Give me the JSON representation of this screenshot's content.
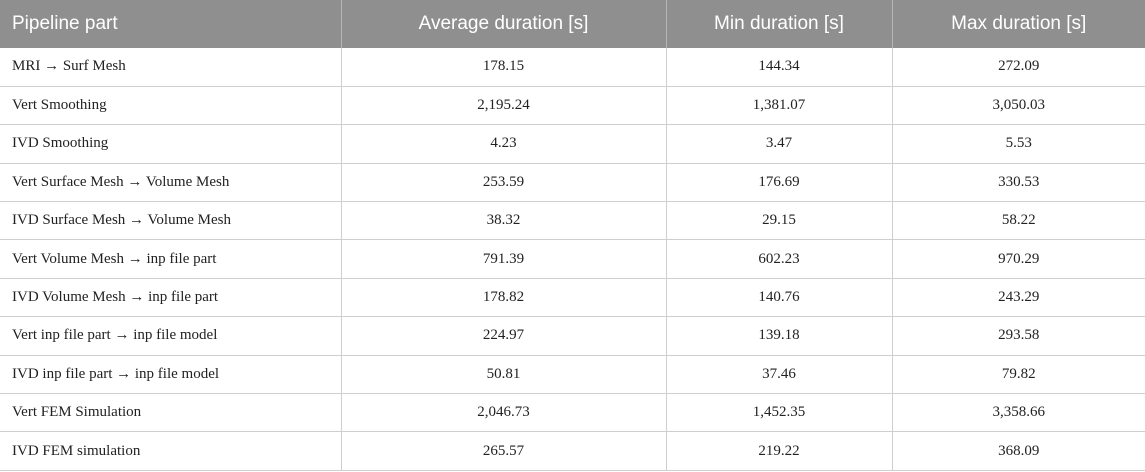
{
  "table": {
    "headers": [
      "Pipeline part",
      "Average duration [s]",
      "Min duration [s]",
      "Max duration [s]"
    ],
    "rows": [
      [
        "MRI → Surf Mesh",
        "178.15",
        "144.34",
        "272.09"
      ],
      [
        "Vert Smoothing",
        "2,195.24",
        "1,381.07",
        "3,050.03"
      ],
      [
        "IVD Smoothing",
        "4.23",
        "3.47",
        "5.53"
      ],
      [
        "Vert Surface Mesh → Volume Mesh",
        "253.59",
        "176.69",
        "330.53"
      ],
      [
        "IVD Surface Mesh → Volume Mesh",
        "38.32",
        "29.15",
        "58.22"
      ],
      [
        "Vert Volume Mesh → inp file part",
        "791.39",
        "602.23",
        "970.29"
      ],
      [
        "IVD Volume Mesh → inp file part",
        "178.82",
        "140.76",
        "243.29"
      ],
      [
        "Vert inp file part → inp file model",
        "224.97",
        "139.18",
        "293.58"
      ],
      [
        "IVD inp file part → inp file model",
        "50.81",
        "37.46",
        "79.82"
      ],
      [
        "Vert FEM Simulation",
        "2,046.73",
        "1,452.35",
        "3,358.66"
      ],
      [
        "IVD FEM simulation",
        "265.57",
        "219.22",
        "368.09"
      ]
    ]
  }
}
